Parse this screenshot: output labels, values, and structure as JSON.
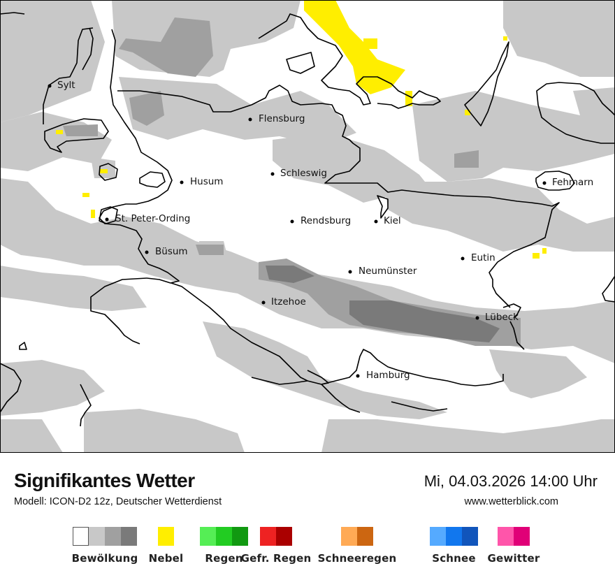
{
  "title": "Signifikantes Wetter",
  "model": "Modell: ICON-D2 12z, Deutscher Wetterdienst",
  "datetime": "Mi, 04.03.2026 14:00 Uhr",
  "website": "www.wetterblick.com",
  "cities": {
    "sylt": "Sylt",
    "flensburg": "Flensburg",
    "husum": "Husum",
    "schleswig": "Schleswig",
    "fehmarn": "Fehmarn",
    "st_peter_ording": "St. Peter-Ording",
    "rendsburg": "Rendsburg",
    "kiel": "Kiel",
    "buesum": "Büsum",
    "eutin": "Eutin",
    "neumuenster": "Neumünster",
    "itzehoe": "Itzehoe",
    "luebeck": "Lübeck",
    "hamburg": "Hamburg"
  },
  "legend": {
    "bewoelkung": {
      "label": "Bewölkung",
      "colors": [
        "#ffffff",
        "#c8c8c8",
        "#a0a0a0",
        "#7a7a7a"
      ]
    },
    "nebel": {
      "label": "Nebel",
      "colors": [
        "#ffee00"
      ]
    },
    "regen": {
      "label": "Regen",
      "colors": [
        "#55ee55",
        "#22cc22",
        "#119911"
      ]
    },
    "gefr_regen": {
      "label": "Gefr. Regen",
      "colors": [
        "#ee2222",
        "#aa0000"
      ]
    },
    "schneeregen": {
      "label": "Schneeregen",
      "colors": [
        "#ffaa55",
        "#cc6611"
      ]
    },
    "schnee": {
      "label": "Schnee",
      "colors": [
        "#55aaff",
        "#1177ee",
        "#1155bb"
      ]
    },
    "gewitter": {
      "label": "Gewitter",
      "colors": [
        "#ff55aa",
        "#e00077"
      ]
    }
  }
}
